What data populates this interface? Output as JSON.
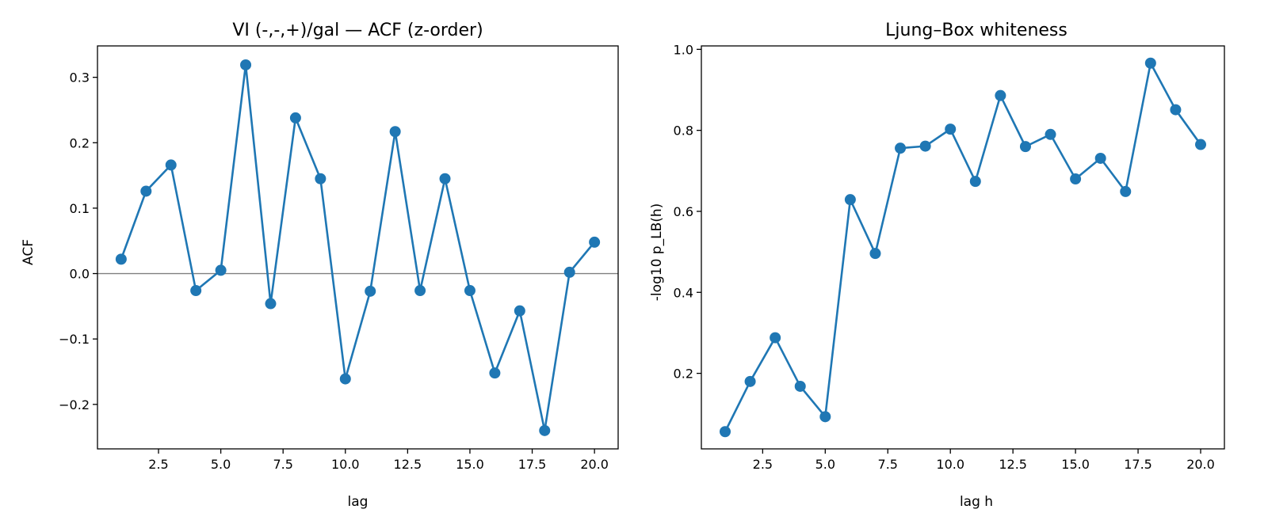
{
  "colors": {
    "series": "#1f77b4",
    "reference_line": "#808080",
    "axes": "#000000",
    "background": "#ffffff"
  },
  "chart_data": [
    {
      "type": "line",
      "title": "VI (-,-,+)/gal — ACF (z-order)",
      "xlabel": "lag",
      "ylabel": "ACF",
      "xlim": [
        0.05,
        20.95
      ],
      "ylim": [
        -0.268,
        0.348
      ],
      "xticks": [
        2.5,
        5.0,
        7.5,
        10.0,
        12.5,
        15.0,
        17.5,
        20.0
      ],
      "xtick_labels": [
        "2.5",
        "5.0",
        "7.5",
        "10.0",
        "12.5",
        "15.0",
        "17.5",
        "20.0"
      ],
      "yticks": [
        -0.2,
        -0.1,
        0.0,
        0.1,
        0.2,
        0.3
      ],
      "ytick_labels": [
        "−0.2",
        "−0.1",
        "0.0",
        "0.1",
        "0.2",
        "0.3"
      ],
      "reference_y": 0.0,
      "grid": false,
      "marker": "circle",
      "series": [
        {
          "x": [
            1,
            2,
            3,
            4,
            5,
            6,
            7,
            8,
            9,
            10,
            11,
            12,
            13,
            14,
            15,
            16,
            17,
            18,
            19,
            20
          ],
          "y": [
            0.022,
            0.126,
            0.166,
            -0.026,
            0.005,
            0.319,
            -0.046,
            0.238,
            0.145,
            -0.161,
            -0.027,
            0.217,
            -0.026,
            0.145,
            -0.026,
            -0.152,
            -0.057,
            -0.24,
            0.002,
            0.048
          ]
        }
      ]
    },
    {
      "type": "line",
      "title": "Ljung–Box whiteness",
      "xlabel": "lag h",
      "ylabel": "-log10 p_LB(h)",
      "xlim": [
        0.05,
        20.95
      ],
      "ylim": [
        0.0135,
        1.0085
      ],
      "xticks": [
        2.5,
        5.0,
        7.5,
        10.0,
        12.5,
        15.0,
        17.5,
        20.0
      ],
      "xtick_labels": [
        "2.5",
        "5.0",
        "7.5",
        "10.0",
        "12.5",
        "15.0",
        "17.5",
        "20.0"
      ],
      "yticks": [
        0.2,
        0.4,
        0.6,
        0.8,
        1.0
      ],
      "ytick_labels": [
        "0.2",
        "0.4",
        "0.6",
        "0.8",
        "1.0"
      ],
      "grid": false,
      "marker": "circle",
      "series": [
        {
          "x": [
            1,
            2,
            3,
            4,
            5,
            6,
            7,
            8,
            9,
            10,
            11,
            12,
            13,
            14,
            15,
            16,
            17,
            18,
            19,
            20
          ],
          "y": [
            0.056,
            0.18,
            0.288,
            0.168,
            0.093,
            0.629,
            0.496,
            0.756,
            0.761,
            0.803,
            0.674,
            0.886,
            0.76,
            0.79,
            0.68,
            0.731,
            0.649,
            0.966,
            0.851,
            0.765
          ]
        }
      ]
    }
  ]
}
